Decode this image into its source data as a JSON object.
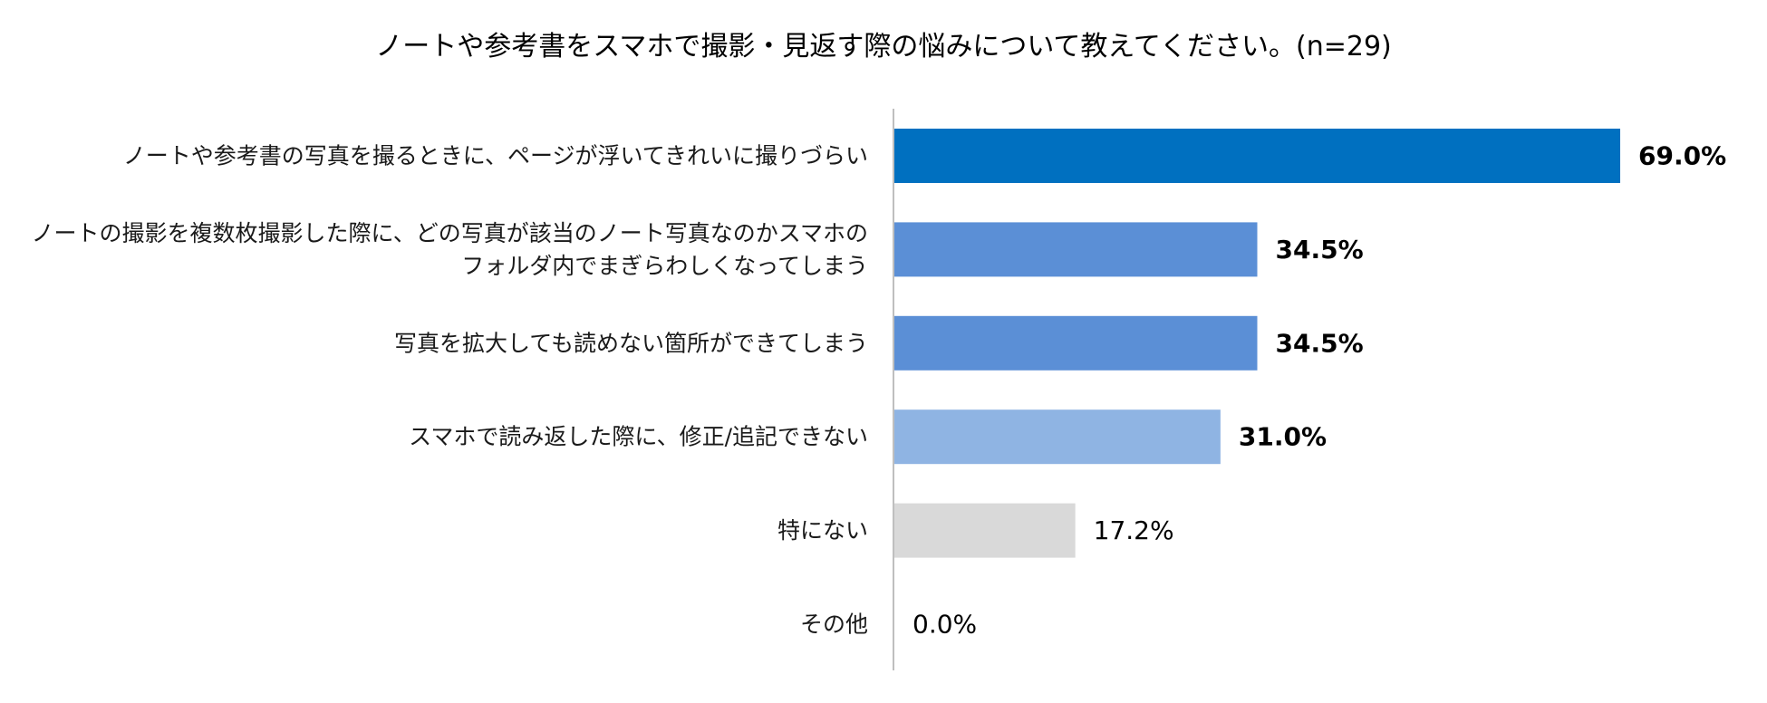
{
  "chart_data": {
    "type": "bar",
    "orientation": "horizontal",
    "title": "ノートや参考書をスマホで撮影・見返す際の悩みについて教えてください。(n=29)",
    "categories": [
      [
        "ノートや参考書の写真を撮るときに、ページが浮いてきれいに撮りづらい"
      ],
      [
        "ノートの撮影を複数枚撮影した際に、どの写真が該当のノート写真なのかスマホの",
        "フォルダ内でまぎらわしくなってしまう"
      ],
      [
        "写真を拡大しても読めない箇所ができてしまう"
      ],
      [
        "スマホで読み返した際に、修正/追記できない"
      ],
      [
        "特にない"
      ],
      [
        "その他"
      ]
    ],
    "values": [
      69.0,
      34.5,
      34.5,
      31.0,
      17.2,
      0.0
    ],
    "value_labels": [
      "69.0%",
      "34.5%",
      "34.5%",
      "31.0%",
      "17.2%",
      "0.0%"
    ],
    "bar_colors": [
      "#0070C0",
      "#5B8FD6",
      "#5B8FD6",
      "#8FB4E3",
      "#D9D9D9",
      "#D9D9D9"
    ],
    "bold_labels": [
      true,
      true,
      true,
      true,
      false,
      false
    ],
    "xlim": [
      0,
      100
    ],
    "grid": false,
    "legend": "none",
    "xlabel": "",
    "ylabel": ""
  }
}
